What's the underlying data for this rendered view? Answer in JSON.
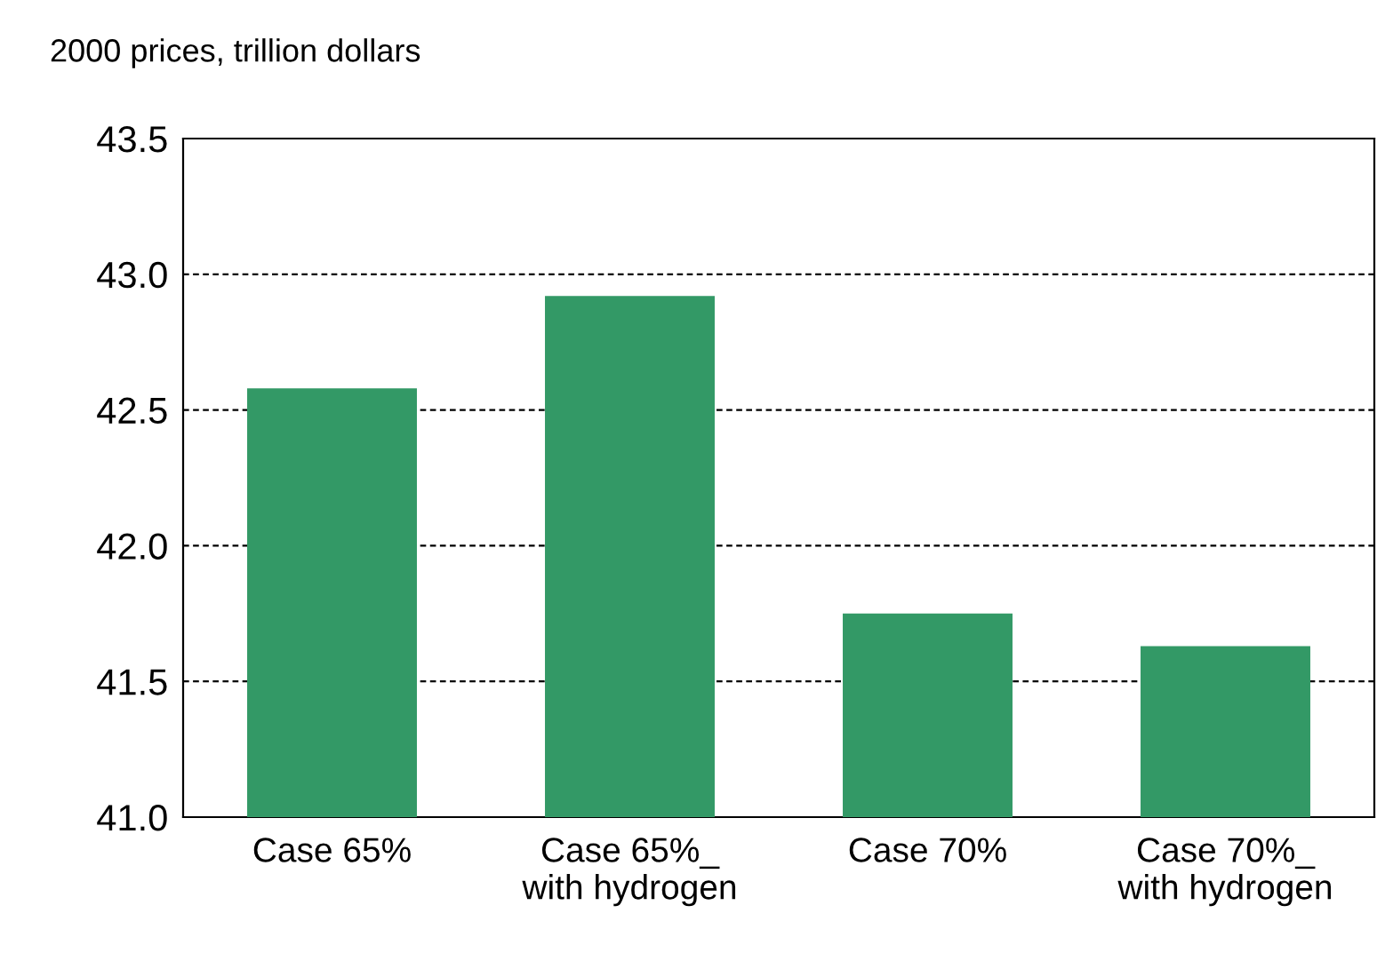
{
  "chart_data": {
    "type": "bar",
    "ylabel": "2000 prices, trillion dollars",
    "categories": [
      "Case 65%",
      "Case 65%_\nwith hydrogen",
      "Case 70%",
      "Case 70%_\nwith hydrogen"
    ],
    "values": [
      42.58,
      42.92,
      41.75,
      41.63
    ],
    "color": "#339966",
    "ylim": [
      41.0,
      43.5
    ],
    "yticks": [
      {
        "value": 41.0,
        "label": "41.0"
      },
      {
        "value": 41.5,
        "label": "41.5"
      },
      {
        "value": 42.0,
        "label": "42.0"
      },
      {
        "value": 42.5,
        "label": "42.5"
      },
      {
        "value": 43.0,
        "label": "43.0"
      },
      {
        "value": 43.5,
        "label": "43.5"
      }
    ],
    "grid": "y",
    "line_style": "dashed"
  }
}
